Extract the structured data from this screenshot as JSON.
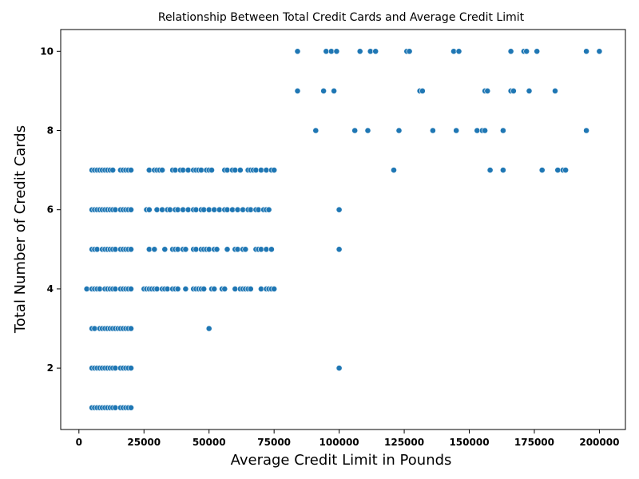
{
  "chart_data": {
    "type": "scatter",
    "title": "Relationship Between Total Credit Cards and Average Credit Limit",
    "xlabel": "Average Credit Limit in Pounds",
    "ylabel": "Total Number of Credit Cards",
    "xlim": [
      -7000,
      210000
    ],
    "ylim": [
      0.45,
      10.55
    ],
    "xticks": [
      0,
      25000,
      50000,
      75000,
      100000,
      125000,
      150000,
      175000,
      200000
    ],
    "yticks": [
      2,
      4,
      6,
      8,
      10
    ],
    "grid": false,
    "legend": "none",
    "point_color": "#1f77b4",
    "x": [
      5000,
      6000,
      7000,
      8000,
      9000,
      10000,
      11000,
      12000,
      13000,
      14000,
      16000,
      17000,
      18000,
      19000,
      20000,
      5000,
      6000,
      7000,
      8000,
      9000,
      10000,
      11000,
      12000,
      13000,
      14000,
      16000,
      17000,
      18000,
      19000,
      20000,
      5000,
      6000,
      8000,
      9000,
      10000,
      11000,
      12000,
      13000,
      14000,
      15000,
      16000,
      17000,
      18000,
      19000,
      20000,
      3000,
      5000,
      6000,
      7000,
      8000,
      10000,
      11000,
      12000,
      13000,
      14000,
      16000,
      17000,
      18000,
      19000,
      20000,
      25000,
      26000,
      27000,
      28000,
      29000,
      30000,
      32000,
      33000,
      34000,
      36000,
      37000,
      38000,
      41000,
      44000,
      45000,
      46000,
      47000,
      48000,
      51000,
      52000,
      55000,
      56000,
      60000,
      62000,
      63000,
      64000,
      65000,
      66000,
      70000,
      72000,
      73000,
      74000,
      75000,
      50000,
      100000,
      5000,
      6000,
      7000,
      9000,
      10000,
      11000,
      12000,
      13000,
      14000,
      16000,
      17000,
      18000,
      19000,
      20000,
      27000,
      29000,
      33000,
      36000,
      37000,
      38000,
      40000,
      41000,
      44000,
      45000,
      47000,
      48000,
      49000,
      50000,
      52000,
      53000,
      57000,
      60000,
      61000,
      63000,
      64000,
      68000,
      69000,
      70000,
      72000,
      74000,
      100000,
      5000,
      6000,
      7000,
      8000,
      9000,
      10000,
      11000,
      12000,
      13000,
      14000,
      16000,
      17000,
      18000,
      19000,
      20000,
      26000,
      27000,
      30000,
      32000,
      34000,
      35000,
      37000,
      38000,
      40000,
      42000,
      44000,
      45000,
      47000,
      48000,
      50000,
      52000,
      54000,
      56000,
      57000,
      59000,
      61000,
      63000,
      65000,
      66000,
      68000,
      69000,
      71000,
      72000,
      73000,
      100000,
      5000,
      6000,
      7000,
      8000,
      9000,
      10000,
      11000,
      12000,
      13000,
      16000,
      17000,
      18000,
      19000,
      20000,
      27000,
      29000,
      30000,
      31000,
      32000,
      36000,
      37000,
      39000,
      40000,
      42000,
      44000,
      45000,
      46000,
      47000,
      49000,
      50000,
      51000,
      56000,
      57000,
      59000,
      60000,
      62000,
      65000,
      66000,
      67000,
      68000,
      70000,
      72000,
      74000,
      75000,
      121000,
      158000,
      163000,
      178000,
      184000,
      186000,
      187000,
      91000,
      106000,
      111000,
      123000,
      136000,
      145000,
      153000,
      155000,
      156000,
      163000,
      195000,
      84000,
      94000,
      98000,
      131000,
      132000,
      156000,
      157000,
      166000,
      167000,
      173000,
      183000,
      84000,
      95000,
      97000,
      99000,
      108000,
      112000,
      114000,
      126000,
      127000,
      144000,
      146000,
      166000,
      171000,
      172000,
      176000,
      195000,
      200000
    ],
    "y": [
      1,
      1,
      1,
      1,
      1,
      1,
      1,
      1,
      1,
      1,
      1,
      1,
      1,
      1,
      1,
      2,
      2,
      2,
      2,
      2,
      2,
      2,
      2,
      2,
      2,
      2,
      2,
      2,
      2,
      2,
      3,
      3,
      3,
      3,
      3,
      3,
      3,
      3,
      3,
      3,
      3,
      3,
      3,
      3,
      3,
      4,
      4,
      4,
      4,
      4,
      4,
      4,
      4,
      4,
      4,
      4,
      4,
      4,
      4,
      4,
      4,
      4,
      4,
      4,
      4,
      4,
      4,
      4,
      4,
      4,
      4,
      4,
      4,
      4,
      4,
      4,
      4,
      4,
      4,
      4,
      4,
      4,
      4,
      4,
      4,
      4,
      4,
      4,
      4,
      4,
      4,
      4,
      4,
      3,
      2,
      5,
      5,
      5,
      5,
      5,
      5,
      5,
      5,
      5,
      5,
      5,
      5,
      5,
      5,
      5,
      5,
      5,
      5,
      5,
      5,
      5,
      5,
      5,
      5,
      5,
      5,
      5,
      5,
      5,
      5,
      5,
      5,
      5,
      5,
      5,
      5,
      5,
      5,
      5,
      5,
      5,
      6,
      6,
      6,
      6,
      6,
      6,
      6,
      6,
      6,
      6,
      6,
      6,
      6,
      6,
      6,
      6,
      6,
      6,
      6,
      6,
      6,
      6,
      6,
      6,
      6,
      6,
      6,
      6,
      6,
      6,
      6,
      6,
      6,
      6,
      6,
      6,
      6,
      6,
      6,
      6,
      6,
      6,
      6,
      6,
      6,
      7,
      7,
      7,
      7,
      7,
      7,
      7,
      7,
      7,
      7,
      7,
      7,
      7,
      7,
      7,
      7,
      7,
      7,
      7,
      7,
      7,
      7,
      7,
      7,
      7,
      7,
      7,
      7,
      7,
      7,
      7,
      7,
      7,
      7,
      7,
      7,
      7,
      7,
      7,
      7,
      7,
      7,
      7,
      7,
      7,
      7,
      7,
      7,
      7,
      7,
      7,
      8,
      8,
      8,
      8,
      8,
      8,
      8,
      8,
      8,
      8,
      8,
      9,
      9,
      9,
      9,
      9,
      9,
      9,
      9,
      9,
      9,
      9,
      10,
      10,
      10,
      10,
      10,
      10,
      10,
      10,
      10,
      10,
      10,
      10,
      10,
      10,
      10,
      10,
      10
    ]
  }
}
